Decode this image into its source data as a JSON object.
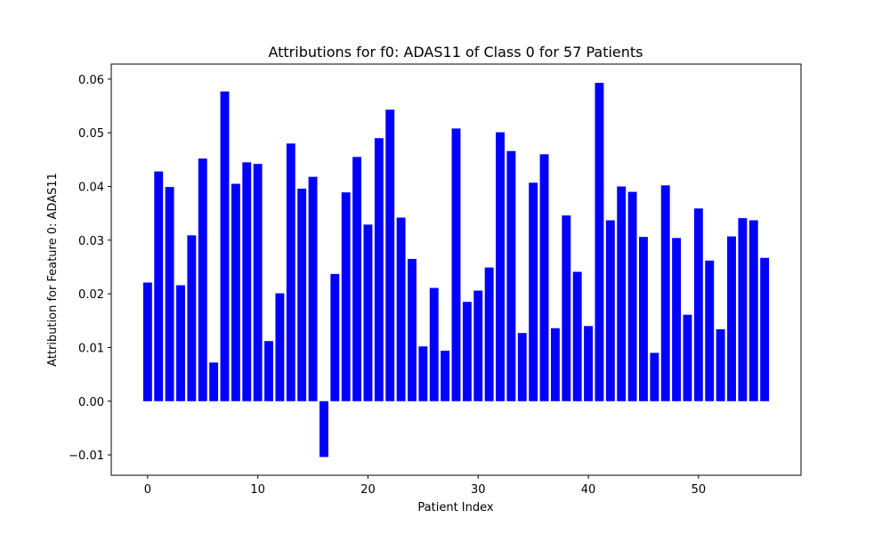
{
  "chart_data": {
    "type": "bar",
    "title": "Attributions for f0: ADAS11 of Class 0 for 57 Patients",
    "xlabel": "Patient Index",
    "ylabel": "Attribution for Feature 0: ADAS11",
    "xlim": [
      -3.3,
      59.3
    ],
    "ylim": [
      -0.0138,
      0.0628
    ],
    "xticks": [
      0,
      10,
      20,
      30,
      40,
      50
    ],
    "yticks": [
      -0.01,
      0.0,
      0.01,
      0.02,
      0.03,
      0.04,
      0.05,
      0.06
    ],
    "ytick_labels": [
      "−0.01",
      "0.00",
      "0.01",
      "0.02",
      "0.03",
      "0.04",
      "0.05",
      "0.06"
    ],
    "bar_color": "#0000ff",
    "grid": false,
    "x": [
      0,
      1,
      2,
      3,
      4,
      5,
      6,
      7,
      8,
      9,
      10,
      11,
      12,
      13,
      14,
      15,
      16,
      17,
      18,
      19,
      20,
      21,
      22,
      23,
      24,
      25,
      26,
      27,
      28,
      29,
      30,
      31,
      32,
      33,
      34,
      35,
      36,
      37,
      38,
      39,
      40,
      41,
      42,
      43,
      44,
      45,
      46,
      47,
      48,
      49,
      50,
      51,
      52,
      53,
      54,
      55,
      56
    ],
    "values": [
      0.0221,
      0.0428,
      0.0399,
      0.0216,
      0.0309,
      0.0452,
      0.0072,
      0.0577,
      0.0405,
      0.0445,
      0.0442,
      0.0112,
      0.0201,
      0.048,
      0.0396,
      0.0418,
      -0.0104,
      0.0237,
      0.0389,
      0.0455,
      0.0329,
      0.049,
      0.0543,
      0.0342,
      0.0265,
      0.0102,
      0.0211,
      0.0094,
      0.0508,
      0.0185,
      0.0206,
      0.0249,
      0.0501,
      0.0466,
      0.0127,
      0.0407,
      0.046,
      0.0136,
      0.0346,
      0.0241,
      0.014,
      0.0593,
      0.0337,
      0.04,
      0.039,
      0.0306,
      0.009,
      0.0402,
      0.0304,
      0.0161,
      0.0359,
      0.0262,
      0.0134,
      0.0307,
      0.0341,
      0.0337,
      0.0267
    ]
  }
}
